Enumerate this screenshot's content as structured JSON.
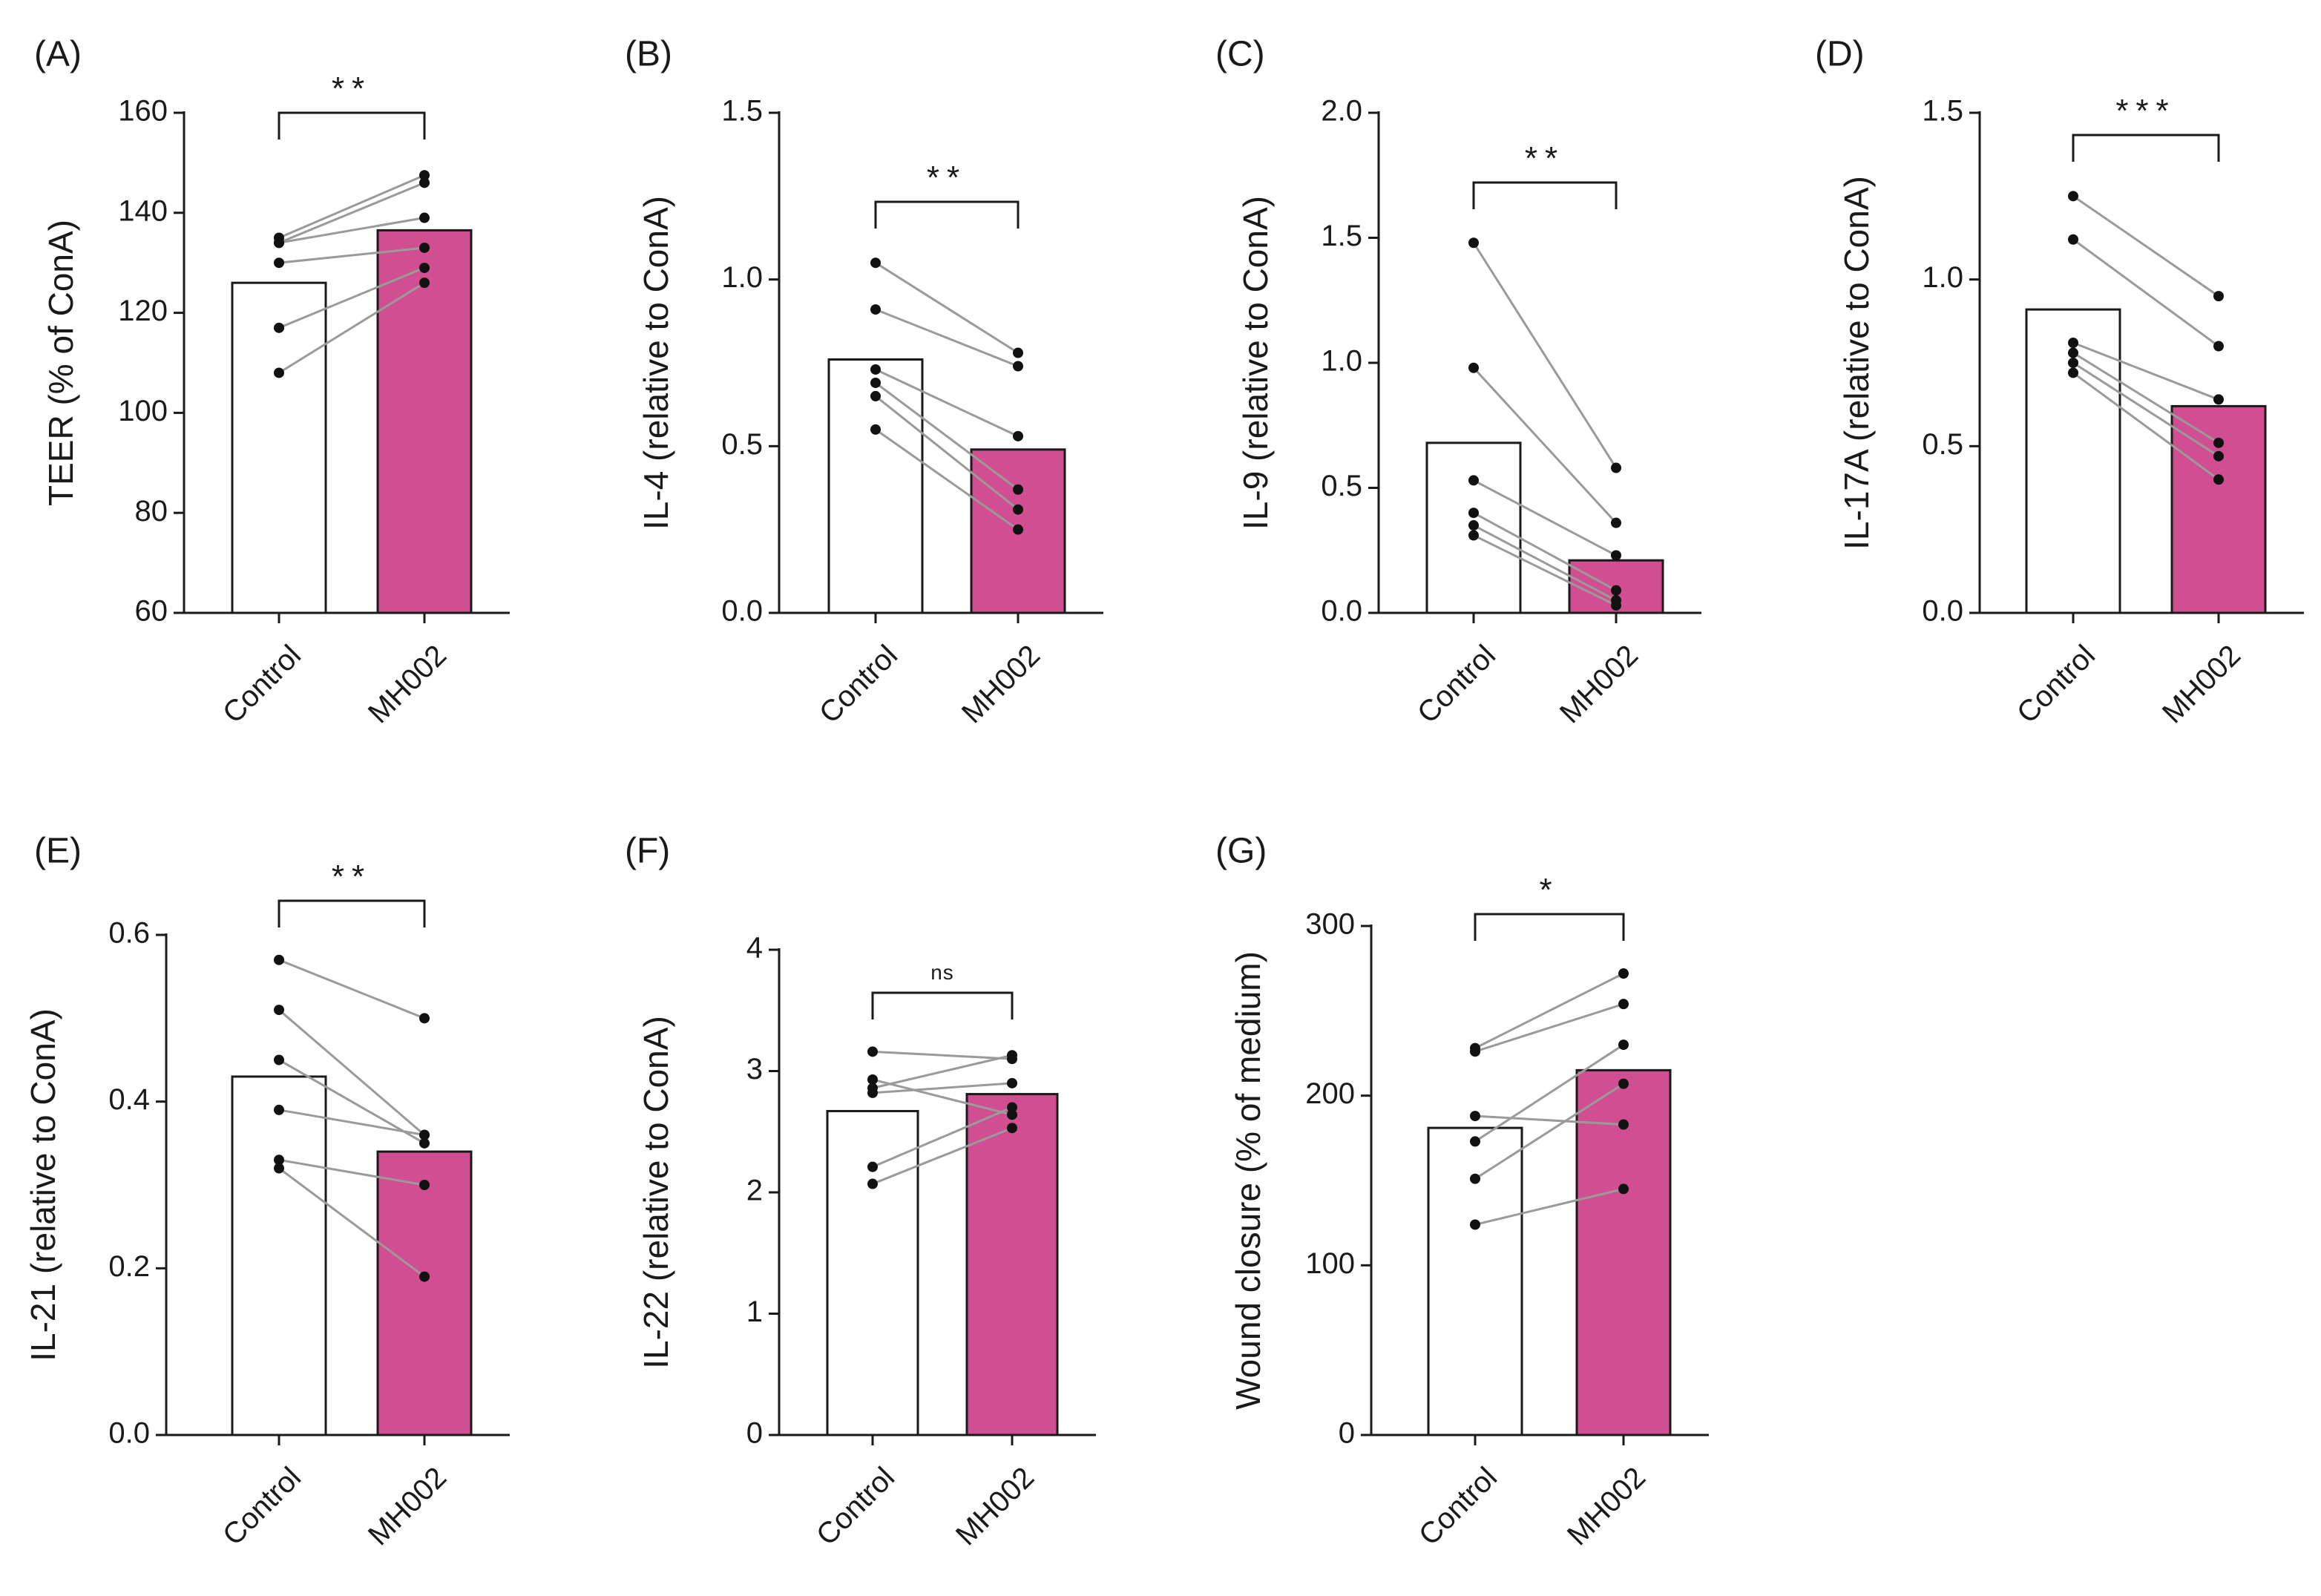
{
  "figure": {
    "colors": {
      "control_fill": "#ffffff",
      "treated_fill": "#d14e92",
      "bar_stroke": "#1a1a1a",
      "line": "#9a9a9a",
      "dot": "#111111"
    }
  },
  "chart_data": [
    {
      "panel": "(A)",
      "type": "bar",
      "categories": [
        "Control",
        "MH002"
      ],
      "ylabel": "TEER (% of ConA)",
      "ylim": [
        60,
        160
      ],
      "yticks": [
        60,
        80,
        100,
        120,
        140,
        160
      ],
      "tick_decimals": 0,
      "bar_means": [
        126,
        136.5
      ],
      "paired_points": [
        [
          108,
          126
        ],
        [
          117,
          129
        ],
        [
          130,
          133
        ],
        [
          134,
          139
        ],
        [
          134,
          146
        ],
        [
          135,
          147.5
        ]
      ],
      "significance": "**"
    },
    {
      "panel": "(B)",
      "type": "bar",
      "categories": [
        "Control",
        "MH002"
      ],
      "ylabel": "IL-4 (relative to ConA)",
      "ylim": [
        0,
        1.5
      ],
      "yticks": [
        0.0,
        0.5,
        1.0,
        1.5
      ],
      "tick_decimals": 1,
      "bar_means": [
        0.76,
        0.49
      ],
      "paired_points": [
        [
          1.05,
          0.78
        ],
        [
          0.91,
          0.74
        ],
        [
          0.73,
          0.53
        ],
        [
          0.69,
          0.37
        ],
        [
          0.65,
          0.31
        ],
        [
          0.55,
          0.25
        ]
      ],
      "significance": "**"
    },
    {
      "panel": "(C)",
      "type": "bar",
      "categories": [
        "Control",
        "MH002"
      ],
      "ylabel": "IL-9 (relative to ConA)",
      "ylim": [
        0,
        2.0
      ],
      "yticks": [
        0.0,
        0.5,
        1.0,
        1.5,
        2.0
      ],
      "tick_decimals": 1,
      "bar_means": [
        0.68,
        0.21
      ],
      "paired_points": [
        [
          1.48,
          0.58
        ],
        [
          0.98,
          0.36
        ],
        [
          0.53,
          0.23
        ],
        [
          0.4,
          0.09
        ],
        [
          0.35,
          0.05
        ],
        [
          0.31,
          0.03
        ]
      ],
      "significance": "**"
    },
    {
      "panel": "(D)",
      "type": "bar",
      "categories": [
        "Control",
        "MH002"
      ],
      "ylabel": "IL-17A (relative to ConA)",
      "ylim": [
        0,
        1.5
      ],
      "yticks": [
        0.0,
        0.5,
        1.0,
        1.5
      ],
      "tick_decimals": 1,
      "bar_means": [
        0.91,
        0.62
      ],
      "paired_points": [
        [
          1.25,
          0.95
        ],
        [
          1.12,
          0.8
        ],
        [
          0.81,
          0.64
        ],
        [
          0.78,
          0.51
        ],
        [
          0.75,
          0.47
        ],
        [
          0.72,
          0.4
        ]
      ],
      "significance": "***"
    },
    {
      "panel": "(E)",
      "type": "bar",
      "categories": [
        "Control",
        "MH002"
      ],
      "ylabel": "IL-21 (relative to ConA)",
      "ylim": [
        0,
        0.6
      ],
      "yticks": [
        0.0,
        0.2,
        0.4,
        0.6
      ],
      "tick_decimals": 1,
      "bar_means": [
        0.43,
        0.34
      ],
      "paired_points": [
        [
          0.57,
          0.5
        ],
        [
          0.51,
          0.36
        ],
        [
          0.45,
          0.35
        ],
        [
          0.39,
          0.36
        ],
        [
          0.33,
          0.3
        ],
        [
          0.32,
          0.19
        ]
      ],
      "significance": "**"
    },
    {
      "panel": "(F)",
      "type": "bar",
      "categories": [
        "Control",
        "MH002"
      ],
      "ylabel": "IL-22 (relative to ConA)",
      "ylim": [
        0,
        4
      ],
      "yticks": [
        0,
        1,
        2,
        3,
        4
      ],
      "tick_decimals": 0,
      "bar_means": [
        2.67,
        2.81
      ],
      "paired_points": [
        [
          3.16,
          3.1
        ],
        [
          2.93,
          2.64
        ],
        [
          2.86,
          3.13
        ],
        [
          2.82,
          2.9
        ],
        [
          2.21,
          2.7
        ],
        [
          2.07,
          2.53
        ]
      ],
      "significance": "ns"
    },
    {
      "panel": "(G)",
      "type": "bar",
      "categories": [
        "Control",
        "MH002"
      ],
      "ylabel": "Wound closure (% of medium)",
      "ylim": [
        0,
        300
      ],
      "yticks": [
        0,
        100,
        200,
        300
      ],
      "tick_decimals": 0,
      "bar_means": [
        181,
        215
      ],
      "paired_points": [
        [
          228,
          272
        ],
        [
          226,
          254
        ],
        [
          188,
          183
        ],
        [
          173,
          230
        ],
        [
          151,
          207
        ],
        [
          124,
          145
        ]
      ],
      "significance": "*"
    }
  ]
}
